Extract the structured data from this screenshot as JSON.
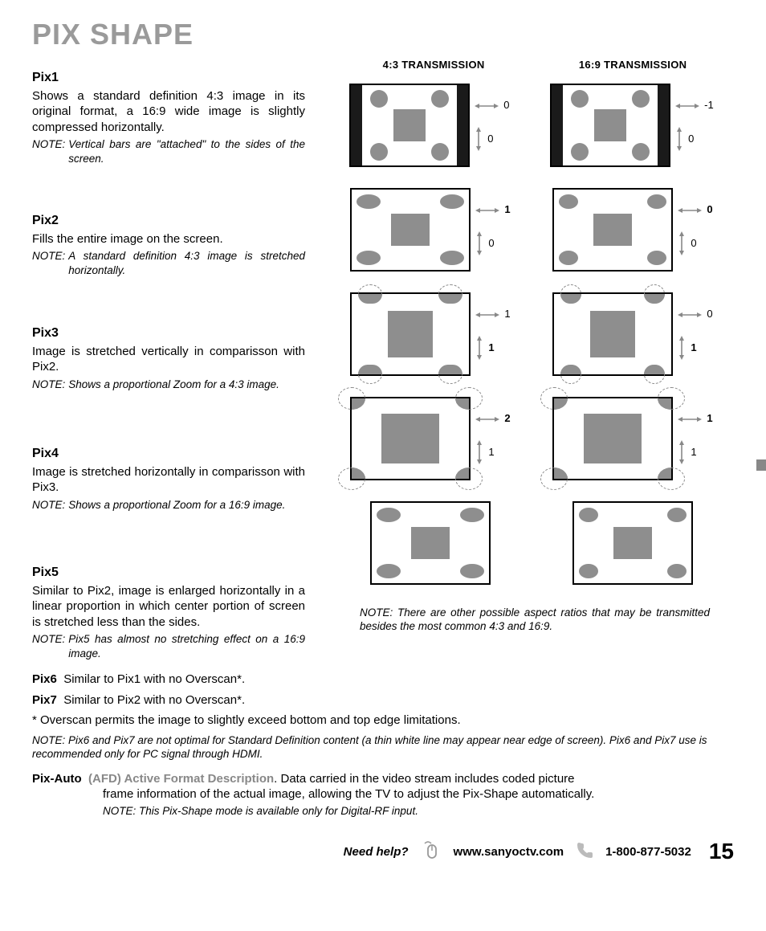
{
  "page_title": "PIX SHAPE",
  "columns": {
    "left_header": "4:3 TRANSMISSION",
    "right_header": "16:9 TRANSMISSION"
  },
  "pix": [
    {
      "title": "Pix1",
      "desc": "Shows a standard definition 4:3 image in its original format, a 16:9 wide image is slightly compressed horizontally.",
      "note": "Vertical bars are \"attached\" to the sides of the screen.",
      "left_arrows": {
        "h": "0",
        "h_bold": false,
        "v": "0",
        "v_bold": false
      },
      "right_arrows": {
        "h": "-1",
        "h_bold": false,
        "v": "0",
        "v_bold": false
      },
      "style": "pillarbox"
    },
    {
      "title": "Pix2",
      "desc": "Fills the entire image on the screen.",
      "note": "A standard definition 4:3 image is stretched horizontally.",
      "left_arrows": {
        "h": "1",
        "h_bold": true,
        "v": "0",
        "v_bold": false
      },
      "right_arrows": {
        "h": "0",
        "h_bold": true,
        "v": "0",
        "v_bold": false
      },
      "style": "stretched"
    },
    {
      "title": "Pix3",
      "desc": "Image is stretched vertically in comparisson with Pix2.",
      "note": "Shows a proportional Zoom for a 4:3 image.",
      "left_arrows": {
        "h": "1",
        "h_bold": false,
        "v": "1",
        "v_bold": true
      },
      "right_arrows": {
        "h": "0",
        "h_bold": false,
        "v": "1",
        "v_bold": true
      },
      "style": "zoom_v"
    },
    {
      "title": "Pix4",
      "desc": "Image is stretched horizontally in comparisson with Pix3.",
      "note": "Shows a proportional Zoom for a 16:9 image.",
      "left_arrows": {
        "h": "2",
        "h_bold": true,
        "v": "1",
        "v_bold": false
      },
      "right_arrows": {
        "h": "1",
        "h_bold": true,
        "v": "1",
        "v_bold": false
      },
      "style": "zoom_hv"
    },
    {
      "title": "Pix5",
      "desc": "Similar to Pix2, image is enlarged horizontally in a linear proportion in which center portion of screen is stretched less than the sides.",
      "note": "Pix5 has almost no stretching effect on a 16:9 image.",
      "left_arrows": null,
      "right_arrows": null,
      "style": "stretched"
    }
  ],
  "right_note": "There are other possible aspect ratios that may be transmitted besides the most common 4:3 and 16:9.",
  "pix6": {
    "title": "Pix6",
    "text": "Similar to Pix1 with no Overscan*."
  },
  "pix7": {
    "title": "Pix7",
    "text": "Similar to Pix2 with no Overscan*."
  },
  "overscan": "* Overscan permits the image to slightly exceed bottom and top edge limitations.",
  "bottom_note": "Pix6 and Pix7 are not optimal for Standard Definition content (a thin white line may appear near edge of screen). Pix6 and Pix7 use is recommended only for PC signal through HDMI.",
  "pix_auto": {
    "title": "Pix-Auto",
    "afd": "(AFD) Active Format Description",
    "desc_line1": ". Data carried in the video stream includes coded picture",
    "desc_line2": "frame information of the actual image, allowing the TV to adjust the Pix-Shape automatically.",
    "note": "This Pix-Shape mode is available only for Digital-RF input."
  },
  "footer": {
    "help": "Need help?",
    "url": "www.sanyoctv.com",
    "phone": "1-800-877-5032",
    "page": "15"
  },
  "note_label": "NOTE:",
  "colors": {
    "title_gray": "#9a9a9a",
    "shape_gray": "#8e8e8e",
    "arrow_gray": "#888888",
    "black": "#1a1a1a"
  }
}
